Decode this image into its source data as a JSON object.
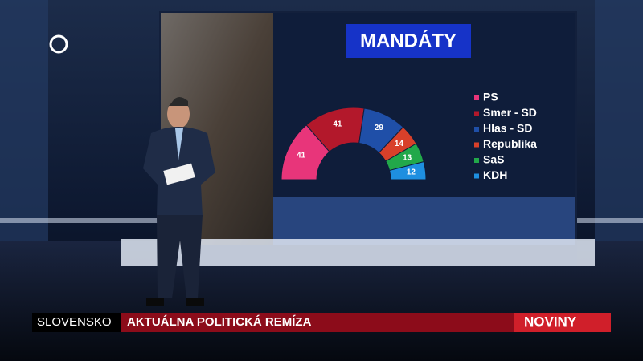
{
  "chart_data": {
    "type": "parliament",
    "title": "MANDÁTY",
    "categories": [
      "PS",
      "Smer - SD",
      "Hlas - SD",
      "Republika",
      "SaS",
      "KDH"
    ],
    "values": [
      41,
      41,
      29,
      14,
      13,
      12
    ],
    "colors": [
      "#e8357a",
      "#b3182b",
      "#1f4fa8",
      "#d8402a",
      "#22a84a",
      "#1e8fe0"
    ]
  },
  "lower_third": {
    "section": "SLOVENSKO",
    "headline": "AKTUÁLNA POLITICKÁ REMÍZA",
    "brand": "NOVINY"
  }
}
